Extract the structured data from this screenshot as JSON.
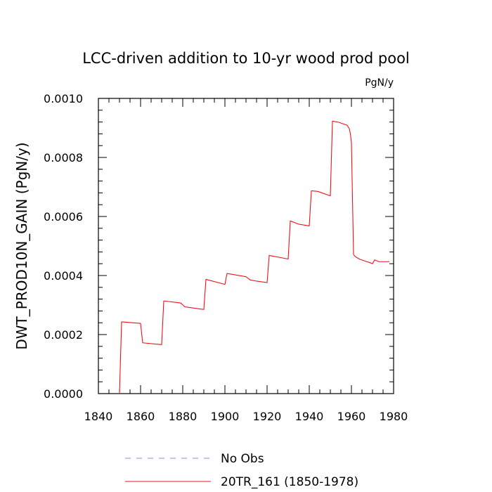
{
  "chart_data": {
    "type": "line",
    "title": "LCC-driven addition to 10-yr wood prod pool",
    "units": "PgN/y",
    "xlabel": "",
    "ylabel": "DWT_PROD10N_GAIN  (PgN/y)",
    "xlim": [
      1840,
      1980
    ],
    "ylim": [
      0,
      0.001
    ],
    "xticks": [
      1840,
      1860,
      1880,
      1900,
      1920,
      1940,
      1960,
      1980
    ],
    "xtick_labels": [
      "1840",
      "1860",
      "1880",
      "1900",
      "1920",
      "1940",
      "1960",
      "1980"
    ],
    "yticks": [
      0,
      0.0002,
      0.0004,
      0.0006,
      0.0008,
      0.001
    ],
    "ytick_labels": [
      "0.0000",
      "0.0002",
      "0.0004",
      "0.0006",
      "0.0008",
      "0.0010"
    ],
    "legend_placement": "bottom",
    "series": [
      {
        "name": "No Obs",
        "style": "dashed",
        "color": "#8a8af0",
        "x": [],
        "y": []
      },
      {
        "name": "20TR_161 (1850-1978)",
        "style": "solid",
        "color": "#e8141b",
        "x": [
          1850,
          1851,
          1860,
          1861,
          1870,
          1871,
          1879,
          1881,
          1890,
          1891,
          1900,
          1901,
          1910,
          1912,
          1915,
          1920,
          1921,
          1930,
          1931,
          1935,
          1940,
          1941,
          1944,
          1950,
          1951,
          1954,
          1958,
          1959,
          1959.5,
          1960,
          1961,
          1962,
          1964,
          1966,
          1969,
          1970,
          1971,
          1973,
          1978
        ],
        "y": [
          0.0,
          0.000243,
          0.000238,
          0.000172,
          0.000166,
          0.000314,
          0.000307,
          0.000294,
          0.000285,
          0.000387,
          0.00037,
          0.000407,
          0.000396,
          0.000385,
          0.000381,
          0.000376,
          0.000468,
          0.000456,
          0.000585,
          0.000574,
          0.000568,
          0.000687,
          0.000685,
          0.00067,
          0.000923,
          0.000919,
          0.000909,
          0.000897,
          0.00088,
          0.00085,
          0.000471,
          0.000463,
          0.000455,
          0.00045,
          0.000443,
          0.00044,
          0.000453,
          0.000447,
          0.000447
        ]
      }
    ]
  }
}
